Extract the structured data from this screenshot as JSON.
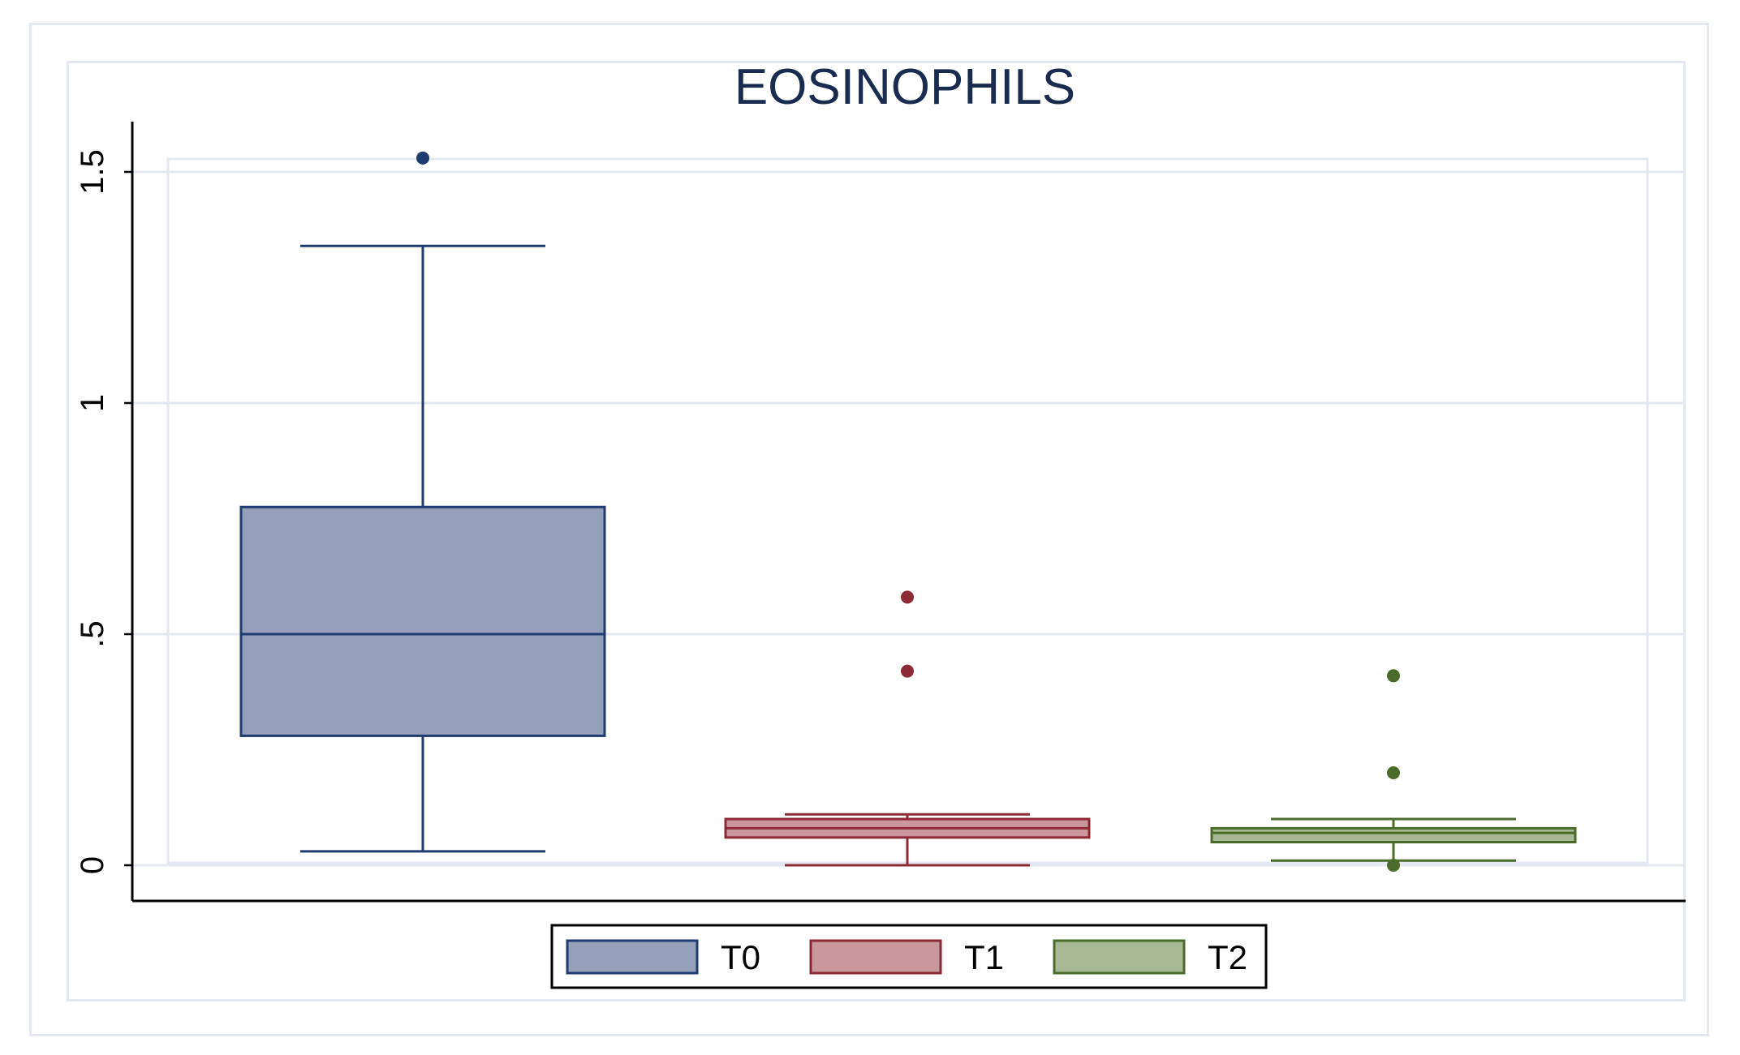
{
  "chart_data": {
    "type": "box",
    "title": "EOSINOPHILS",
    "xlabel": "",
    "ylabel": "",
    "ylim": [
      0,
      1.53
    ],
    "yticks": [
      0,
      0.5,
      1,
      1.5
    ],
    "ytick_labels": [
      "0",
      ".5",
      "1",
      "1.5"
    ],
    "grid": true,
    "legend": "bottom",
    "series": [
      {
        "name": "T0",
        "color": "#1f3b70",
        "fill": "#94a0ba",
        "whisker_low": 0.03,
        "q1": 0.28,
        "median": 0.5,
        "q3": 0.775,
        "whisker_high": 1.34,
        "outliers": [
          1.53
        ]
      },
      {
        "name": "T1",
        "color": "#8c2a35",
        "fill": "#c9979c",
        "whisker_low": 0.0,
        "q1": 0.06,
        "median": 0.08,
        "q3": 0.1,
        "whisker_high": 0.11,
        "outliers": [
          0.42,
          0.58
        ]
      },
      {
        "name": "T2",
        "color": "#4a6b2a",
        "fill": "#a7b994",
        "whisker_low": 0.01,
        "q1": 0.05,
        "median": 0.07,
        "q3": 0.08,
        "whisker_high": 0.1,
        "outliers": [
          0.0,
          0.2,
          0.41
        ]
      }
    ]
  }
}
